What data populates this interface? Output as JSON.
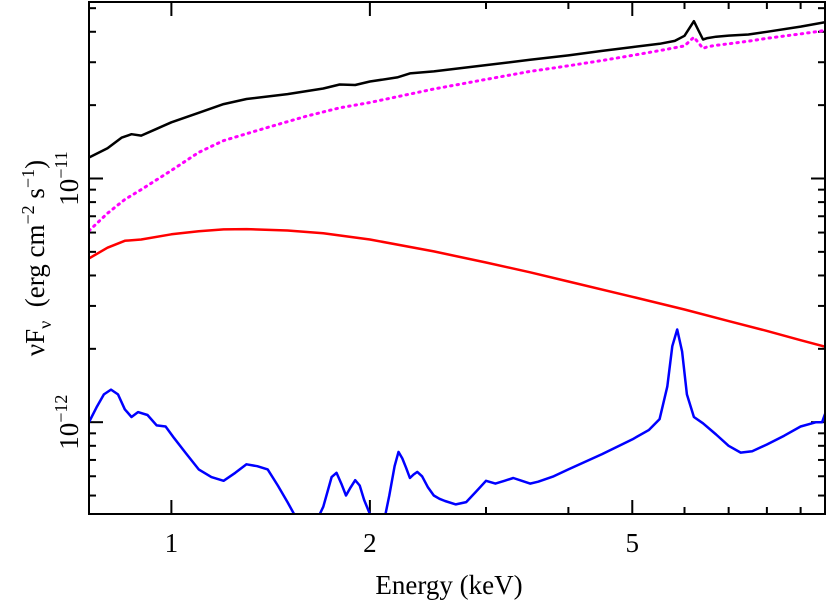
{
  "chart_data": {
    "type": "line",
    "xlabel": "Energy (keV)",
    "ylabel": {
      "nu": "ν",
      "F": "F",
      "sub_nu": "ν",
      "units_open": "(erg cm",
      "exp_minus2": "−2",
      "units_s": " s",
      "exp_minus1": "−1",
      "units_close": ")"
    },
    "x_scale": "log",
    "y_scale": "log",
    "xlim": [
      0.75,
      9.8
    ],
    "ylim": [
      4.2e-13,
      5.3e-11
    ],
    "x_ticks": [
      {
        "value": 1,
        "label": "1"
      },
      {
        "value": 2,
        "label": "2"
      },
      {
        "value": 5,
        "label": "5"
      }
    ],
    "x_minor_ticks": [
      3,
      4,
      6,
      7,
      8,
      9
    ],
    "y_ticks": [
      {
        "value": 1e-12,
        "base": "10",
        "exp": "−12"
      },
      {
        "value": 1e-11,
        "base": "10",
        "exp": "−11"
      }
    ],
    "y_minor_ticks": [
      5e-13,
      6e-13,
      7e-13,
      8e-13,
      9e-13,
      2e-12,
      3e-12,
      4e-12,
      5e-12,
      6e-12,
      7e-12,
      8e-12,
      9e-12,
      2e-11,
      3e-11,
      4e-11,
      5e-11
    ],
    "grid": false,
    "series": [
      {
        "color": "#000000",
        "style": "solid",
        "x": [
          0.75,
          0.8,
          0.84,
          0.87,
          0.9,
          0.95,
          1.0,
          1.1,
          1.2,
          1.3,
          1.5,
          1.7,
          1.8,
          1.9,
          2.0,
          2.2,
          2.3,
          2.5,
          3.0,
          3.5,
          4.0,
          4.5,
          5.0,
          5.5,
          5.8,
          6.0,
          6.2,
          6.3,
          6.4,
          6.5,
          6.7,
          7.0,
          7.5,
          8.0,
          9.0,
          9.8
        ],
        "y": [
          1.22e-11,
          1.33e-11,
          1.47e-11,
          1.52e-11,
          1.5e-11,
          1.6e-11,
          1.7e-11,
          1.86e-11,
          2.02e-11,
          2.12e-11,
          2.22e-11,
          2.34e-11,
          2.43e-11,
          2.42e-11,
          2.5e-11,
          2.6e-11,
          2.7e-11,
          2.75e-11,
          2.92e-11,
          3.07e-11,
          3.2e-11,
          3.34e-11,
          3.46e-11,
          3.57e-11,
          3.67e-11,
          3.85e-11,
          4.42e-11,
          4.05e-11,
          3.72e-11,
          3.77e-11,
          3.82e-11,
          3.86e-11,
          3.9e-11,
          4e-11,
          4.2e-11,
          4.38e-11
        ]
      },
      {
        "color": "#ff00ff",
        "style": "dotted",
        "x": [
          0.75,
          0.8,
          0.85,
          0.9,
          1.0,
          1.1,
          1.2,
          1.4,
          1.6,
          1.8,
          2.0,
          2.5,
          3.0,
          3.5,
          4.0,
          4.5,
          5.0,
          5.5,
          6.0,
          6.2,
          6.3,
          6.4,
          6.5,
          6.7,
          7.0,
          7.5,
          8.0,
          9.0,
          9.8
        ],
        "y": [
          6.1e-12,
          7.2e-12,
          8.2e-12,
          9e-12,
          1.08e-11,
          1.28e-11,
          1.43e-11,
          1.62e-11,
          1.8e-11,
          1.95e-11,
          2.05e-11,
          2.33e-11,
          2.55e-11,
          2.75e-11,
          2.9e-11,
          3.05e-11,
          3.2e-11,
          3.35e-11,
          3.5e-11,
          3.8e-11,
          3.6e-11,
          3.42e-11,
          3.47e-11,
          3.52e-11,
          3.57e-11,
          3.66e-11,
          3.76e-11,
          3.92e-11,
          4.05e-11
        ]
      },
      {
        "color": "#ff0000",
        "style": "solid",
        "x": [
          0.75,
          0.8,
          0.85,
          0.9,
          1.0,
          1.1,
          1.2,
          1.3,
          1.5,
          1.7,
          2.0,
          2.5,
          3.0,
          3.5,
          4.0,
          5.0,
          6.0,
          7.0,
          8.0,
          9.0,
          9.8
        ],
        "y": [
          4.7e-12,
          5.2e-12,
          5.55e-12,
          5.62e-12,
          5.9e-12,
          6.08e-12,
          6.18e-12,
          6.2e-12,
          6.12e-12,
          5.96e-12,
          5.62e-12,
          5.02e-12,
          4.52e-12,
          4.12e-12,
          3.78e-12,
          3.27e-12,
          2.9e-12,
          2.6e-12,
          2.37e-12,
          2.17e-12,
          2.04e-12
        ]
      },
      {
        "color": "#0000ff",
        "style": "solid",
        "x": [
          0.75,
          0.77,
          0.79,
          0.81,
          0.83,
          0.85,
          0.87,
          0.89,
          0.92,
          0.95,
          0.98,
          1.01,
          1.05,
          1.1,
          1.15,
          1.2,
          1.25,
          1.3,
          1.35,
          1.4,
          1.45,
          1.5,
          1.55,
          1.6,
          1.65,
          1.7,
          1.75,
          1.78,
          1.81,
          1.84,
          1.87,
          1.9,
          1.93,
          1.96,
          2.0,
          2.03,
          2.06,
          2.1,
          2.14,
          2.18,
          2.21,
          2.24,
          2.27,
          2.3,
          2.33,
          2.36,
          2.4,
          2.45,
          2.5,
          2.55,
          2.6,
          2.7,
          2.8,
          2.9,
          3.0,
          3.1,
          3.2,
          3.3,
          3.4,
          3.5,
          3.6,
          3.8,
          4.0,
          4.5,
          5.0,
          5.3,
          5.5,
          5.65,
          5.75,
          5.85,
          5.95,
          6.05,
          6.2,
          6.4,
          6.7,
          7.0,
          7.3,
          7.6,
          8.0,
          8.5,
          9.0,
          9.5,
          9.7,
          9.8
        ],
        "y": [
          1e-12,
          1.15e-12,
          1.3e-12,
          1.36e-12,
          1.3e-12,
          1.13e-12,
          1.05e-12,
          1.1e-12,
          1.07e-12,
          9.7e-13,
          9.6e-13,
          8.6e-13,
          7.5e-13,
          6.4e-13,
          5.95e-13,
          5.75e-13,
          6.2e-13,
          6.72e-13,
          6.6e-13,
          6.4e-13,
          5.5e-13,
          4.7e-13,
          4e-13,
          3.6e-13,
          3.8e-13,
          4.5e-13,
          5.95e-13,
          6.2e-13,
          5.6e-13,
          5e-13,
          5.4e-13,
          5.78e-13,
          5.5e-13,
          4.8e-13,
          4.2e-13,
          3.8e-13,
          3.6e-13,
          3.9e-13,
          5e-13,
          6.6e-13,
          7.55e-13,
          7.1e-13,
          6.5e-13,
          5.9e-13,
          6.1e-13,
          6.25e-13,
          6e-13,
          5.4e-13,
          5e-13,
          4.85e-13,
          4.75e-13,
          4.6e-13,
          4.7e-13,
          5.2e-13,
          5.75e-13,
          5.6e-13,
          5.75e-13,
          5.9e-13,
          5.75e-13,
          5.6e-13,
          5.7e-13,
          6e-13,
          6.4e-13,
          7.4e-13,
          8.5e-13,
          9.3e-13,
          1.03e-12,
          1.4e-12,
          2.05e-12,
          2.4e-12,
          1.95e-12,
          1.3e-12,
          1.05e-12,
          9.9e-13,
          8.9e-13,
          8e-13,
          7.5e-13,
          7.6e-13,
          8.1e-13,
          8.8e-13,
          9.6e-13,
          1e-12,
          1e-12,
          1.08e-12
        ]
      }
    ]
  }
}
